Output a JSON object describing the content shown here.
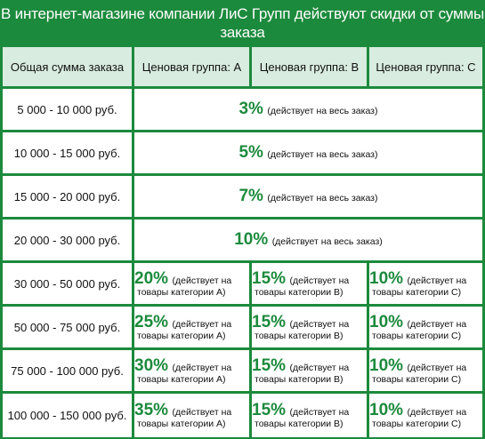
{
  "title": "В интернет-магазине компании ЛиС Групп действуют скидки от суммы заказа",
  "headers": {
    "amount": "Общая сумма заказа",
    "group_a": "Ценовая группа: A",
    "group_b": "Ценовая группа: B",
    "group_c": "Ценовая группа: C"
  },
  "whole_note": "(действует на весь заказ)",
  "rows_whole": [
    {
      "range": "5 000 - 10 000 руб.",
      "pct": "3%"
    },
    {
      "range": "10 000 - 15 000 руб.",
      "pct": "5%"
    },
    {
      "range": "15 000 - 20 000 руб.",
      "pct": "7%"
    },
    {
      "range": "20 000 - 30 000 руб.",
      "pct": "10%"
    }
  ],
  "split_note_line1": "(действует на",
  "split_line2": {
    "a": "товары категории А)",
    "b": "товары категории В)",
    "c": "товары категории С)"
  },
  "rows_split": [
    {
      "range": "30 000 - 50 000 руб.",
      "a": "20%",
      "b": "15%",
      "c": "10%"
    },
    {
      "range": "50 000 - 75 000 руб.",
      "a": "25%",
      "b": "15%",
      "c": "10%"
    },
    {
      "range": "75 000 - 100 000 руб.",
      "a": "30%",
      "b": "15%",
      "c": "10%"
    },
    {
      "range": "100 000 - 150 000 руб.",
      "a": "35%",
      "b": "15%",
      "c": "10%"
    }
  ]
}
